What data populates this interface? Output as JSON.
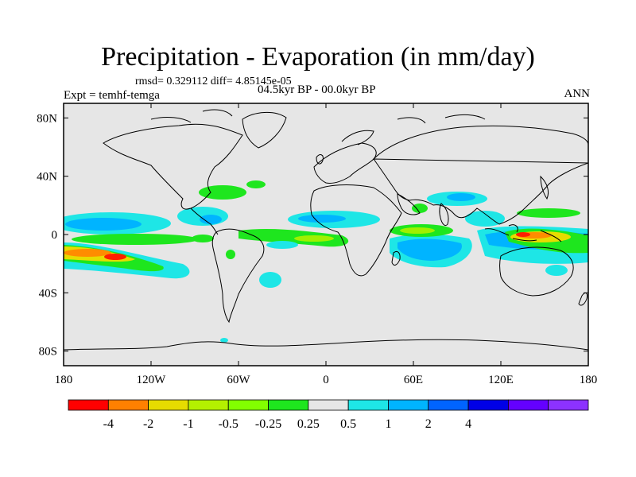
{
  "title": "Precipitation - Evaporation (in mm/day)",
  "stats_line": "rmsd= 0.329112 diff= 4.85145e-05",
  "period_line": "04.5kyr BP - 00.0kyr BP",
  "experiment_label": "Expt = temhf-temga",
  "season_label": "ANN",
  "y_ticks": [
    {
      "label": "80N",
      "lat": 80
    },
    {
      "label": "40N",
      "lat": 40
    },
    {
      "label": "0",
      "lat": 0
    },
    {
      "label": "40S",
      "lat": -40
    },
    {
      "label": "80S",
      "lat": -80
    }
  ],
  "x_ticks": [
    {
      "label": "180",
      "lon": -180
    },
    {
      "label": "120W",
      "lon": -120
    },
    {
      "label": "60W",
      "lon": -60
    },
    {
      "label": "0",
      "lon": 0
    },
    {
      "label": "60E",
      "lon": 60
    },
    {
      "label": "120E",
      "lon": 120
    },
    {
      "label": "180",
      "lon": 180
    }
  ],
  "colorbar": {
    "colors": [
      "#ff0000",
      "#ff8000",
      "#e6dc00",
      "#b4f000",
      "#82ff00",
      "#1ee61e",
      "#e6e6e6",
      "#1ee6e6",
      "#00b4ff",
      "#0064ff",
      "#0000e6",
      "#6400ff",
      "#8c32ff"
    ],
    "boundary_labels": [
      "-4",
      "-2",
      "-1",
      "-0.5",
      "-0.25",
      "0.25",
      "0.5",
      "1",
      "2",
      "4"
    ]
  },
  "colors": {
    "neutral": "#e6e6e6",
    "red": "#ff1e00",
    "orange": "#ff8c00",
    "yellow": "#e6dc00",
    "lightgreen": "#a0f000",
    "green": "#1ee61e",
    "cyan": "#1ee6e6",
    "lightblue": "#00b4ff",
    "blue": "#0064ff"
  }
}
